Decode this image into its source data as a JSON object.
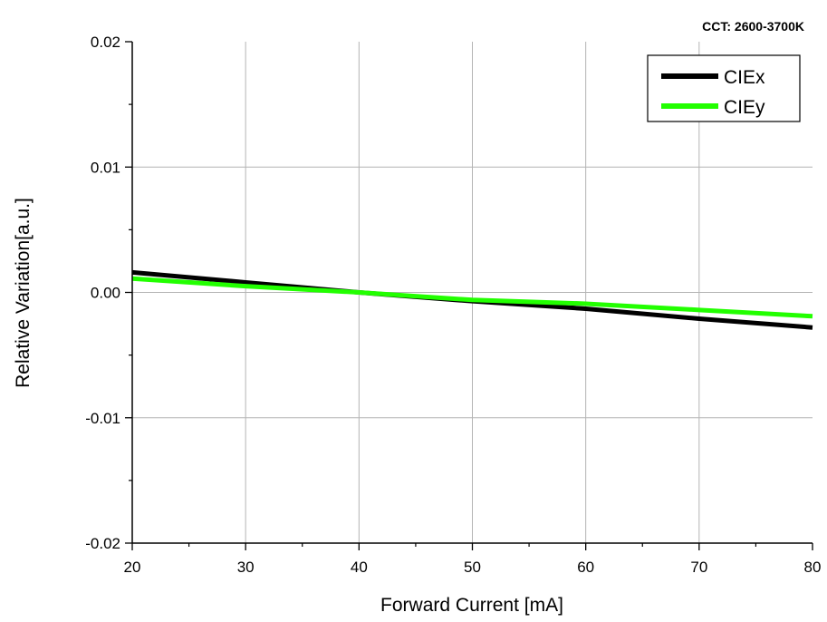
{
  "chart_data": {
    "type": "line",
    "annotation": "CCT: 2600-3700K",
    "xlabel": "Forward Current [mA]",
    "ylabel": "Relative Variation[a.u.]",
    "xlim": [
      20,
      80
    ],
    "ylim": [
      -0.02,
      0.02
    ],
    "xticks": [
      20,
      30,
      40,
      50,
      60,
      70,
      80
    ],
    "xtick_labels": [
      "20",
      "30",
      "40",
      "50",
      "60",
      "70",
      "80"
    ],
    "yticks": [
      -0.02,
      -0.01,
      0.0,
      0.01,
      0.02
    ],
    "ytick_labels": [
      "-0.02",
      "-0.01",
      "0.00",
      "0.01",
      "0.02"
    ],
    "grid": true,
    "legend_position": "top-right",
    "series": [
      {
        "name": "CIEx",
        "color": "#000000",
        "x": [
          20,
          30,
          40,
          50,
          60,
          70,
          80
        ],
        "y": [
          0.0016,
          0.0008,
          0.0,
          -0.0007,
          -0.0013,
          -0.0021,
          -0.0028
        ]
      },
      {
        "name": "CIEy",
        "color": "#22ff00",
        "x": [
          20,
          30,
          40,
          50,
          60,
          70,
          80
        ],
        "y": [
          0.0011,
          0.0005,
          0.0,
          -0.0006,
          -0.0009,
          -0.0014,
          -0.0019
        ]
      }
    ]
  }
}
